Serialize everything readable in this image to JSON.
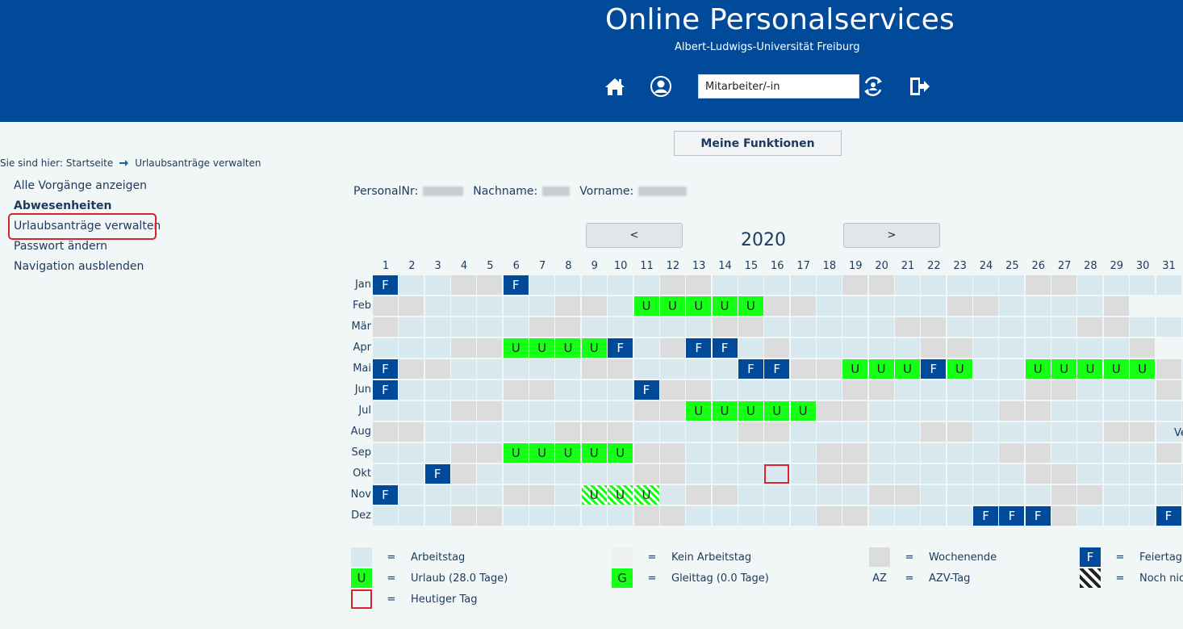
{
  "header": {
    "title": "Online Personalservices",
    "subtitle": "Albert-Ludwigs-Universität Freiburg",
    "role_value": "Mitarbeiter/-in"
  },
  "icons": [
    "home-icon",
    "user-profile-icon",
    "switch-role-icon",
    "logout-icon"
  ],
  "functions_button": "Meine Funktionen",
  "breadcrumb": {
    "prefix": "Sie sind hier:",
    "home": "Startseite",
    "current": "Urlaubsanträge verwalten"
  },
  "nav": [
    {
      "label": "Alle Vorgänge anzeigen",
      "bold": false,
      "active": false
    },
    {
      "label": "Abwesenheiten",
      "bold": true,
      "active": false
    },
    {
      "label": "Urlaubsanträge verwalten",
      "bold": false,
      "active": true
    },
    {
      "label": "Passwort ändern",
      "bold": false,
      "active": false
    },
    {
      "label": "Navigation ausblenden",
      "bold": false,
      "active": false
    }
  ],
  "person": {
    "personalnr_label": "PersonalNr:",
    "nachname_label": "Nachname:",
    "vorname_label": "Vorname:"
  },
  "calendar": {
    "year": "2020",
    "prev_label": "<",
    "next_label": ">",
    "months": [
      "Jan",
      "Feb",
      "Mär",
      "Apr",
      "Mai",
      "Jun",
      "Jul",
      "Aug",
      "Sep",
      "Okt",
      "Nov",
      "Dez"
    ],
    "days": [
      "1",
      "2",
      "3",
      "4",
      "5",
      "6",
      "7",
      "8",
      "9",
      "10",
      "11",
      "12",
      "13",
      "14",
      "15",
      "16",
      "17",
      "18",
      "19",
      "20",
      "21",
      "22",
      "23",
      "24",
      "25",
      "26",
      "27",
      "28",
      "29",
      "30",
      "31"
    ],
    "rows": [
      "fwweefwwwwweewwwwweewwwwweewwww",
      "eewwwwweewuuuuueewwwwweewwwwe",
      "ewwwwweewwwwweewwwwweewwwwweewwww",
      "wwweeuuuufweffwewwwwweewwwwwwe",
      "feewwwwweewwwwffeeuuufuwwuuuuuewf",
      "fwwwweewwwfeewwwwweewwwwweewwwe",
      "wwweewwwwweeuuuuueewwwwweewwwwwe",
      "eewwwwweeewwwweewwwwweewwwwweewe",
      "wwweeuuuuueewwwwweewwwwweewwwwe",
      "wwfewwwwwweewwwhweewwwwwweewwwwe",
      "fwwwweewsssweewwwwweewwwwweewwwe",
      "wwweewwwwweewwwwweewwwwfffewwwf"
    ],
    "day_letter_holiday": "F",
    "day_letter_vacation": "U",
    "truncated_aug_text": "Ve"
  },
  "legend": [
    {
      "swatch": "work",
      "text": "Arbeitstag",
      "symbol": ""
    },
    {
      "swatch": "nowork",
      "text": "Kein Arbeitstag",
      "symbol": ""
    },
    {
      "swatch": "weekend",
      "text": "Wochenende",
      "symbol": ""
    },
    {
      "swatch": "holiday",
      "text": "Feiertag",
      "symbol": "F"
    },
    {
      "swatch": "vacation",
      "text": "Urlaub (28.0 Tage)",
      "symbol": "U"
    },
    {
      "swatch": "flex",
      "text": "Gleittag (0.0 Tage)",
      "symbol": "G"
    },
    {
      "swatch": "azv",
      "text": "AZV-Tag",
      "symbol": "AZ"
    },
    {
      "swatch": "pending",
      "text": "Noch nic",
      "symbol": ""
    },
    {
      "swatch": "today",
      "text": "Heutiger Tag",
      "symbol": ""
    }
  ],
  "legend_equals": "=",
  "colors": {
    "header_bg": "#004a99",
    "workday": "#d7e8ef",
    "weekend": "#dcdcdc",
    "holiday": "#004a99",
    "vacation": "#16ff16",
    "today_border": "#d9232e"
  }
}
